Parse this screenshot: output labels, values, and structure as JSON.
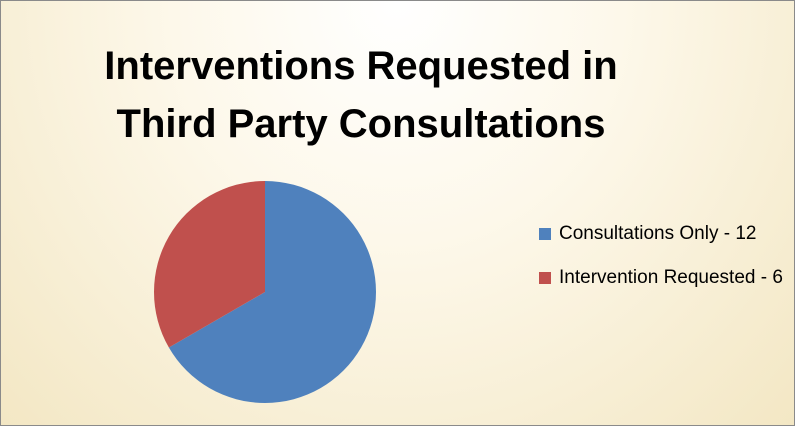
{
  "chart_data": {
    "type": "pie",
    "title_lines": [
      "Interventions Requested in",
      "Third Party Consultations"
    ],
    "categories": [
      "Consultations Only - 12",
      "Intervention Requested - 6"
    ],
    "values": [
      12,
      6
    ],
    "colors": [
      "#4f81bd",
      "#c0504d"
    ],
    "legend_position": "right"
  }
}
